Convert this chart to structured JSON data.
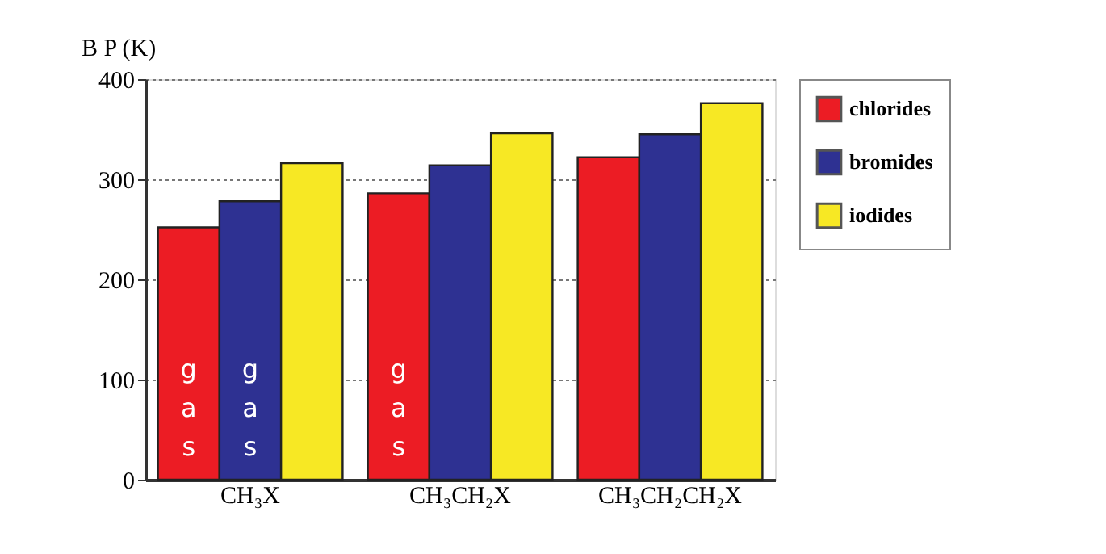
{
  "chart_data": {
    "type": "bar",
    "ylabel": "B P (K)",
    "categories": [
      "CH₃X",
      "CH₃CH₂X",
      "CH₃CH₂CH₂X"
    ],
    "series": [
      {
        "name": "chlorides",
        "color": "#ec1c24",
        "values": [
          252,
          286,
          322
        ],
        "value_labels": [
          "gas",
          "gas",
          null
        ]
      },
      {
        "name": "bromides",
        "color": "#2e3192",
        "values": [
          278,
          314,
          345
        ],
        "value_labels": [
          "gas",
          null,
          null
        ]
      },
      {
        "name": "iodides",
        "color": "#f7e824",
        "values": [
          316,
          346,
          376
        ]
      }
    ],
    "ylim": [
      0,
      400
    ],
    "yticks": [
      0,
      100,
      200,
      300,
      400
    ],
    "grid": "y",
    "legend": "top right"
  }
}
